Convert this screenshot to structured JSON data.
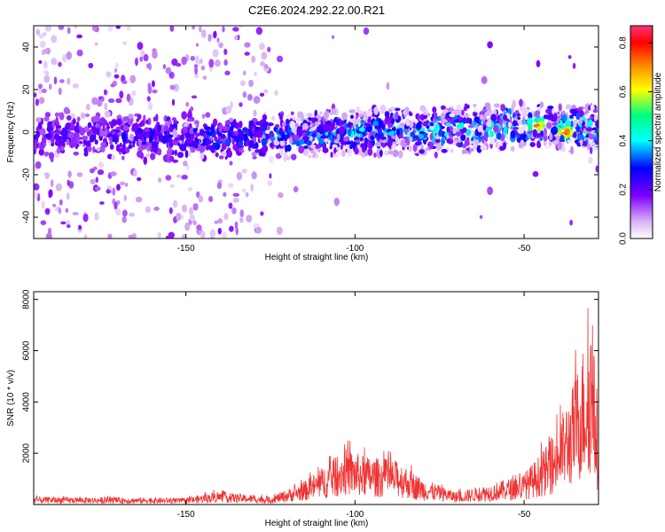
{
  "title": "C2E6.2024.292.22.00.R21",
  "chart_data": [
    {
      "type": "heatmap",
      "xlabel": "Height of straight line (km)",
      "ylabel": "Frequency (Hz)",
      "xlim": [
        -195,
        -28
      ],
      "ylim": [
        -50,
        50
      ],
      "xticks": [
        -150,
        -100,
        -50
      ],
      "yticks": [
        -40,
        -20,
        0,
        20,
        40
      ],
      "colorbar": {
        "label": "Normalized spectral amplitude",
        "range": [
          0,
          0.87
        ],
        "ticks": [
          0.0,
          0.2,
          0.4,
          0.6,
          0.8
        ],
        "colors": [
          "#ffffff",
          "#d8b4f2",
          "#8000ff",
          "#0000ff",
          "#00ffff",
          "#00ff80",
          "#ffff00",
          "#ff8000",
          "#ff0000",
          "#ff3377"
        ]
      },
      "band": {
        "center_hz": [
          {
            "x": -195,
            "y": -1
          },
          {
            "x": -150,
            "y": -3
          },
          {
            "x": -125,
            "y": -2
          },
          {
            "x": -100,
            "y": 0
          },
          {
            "x": -75,
            "y": 1
          },
          {
            "x": -50,
            "y": 3
          },
          {
            "x": -28,
            "y": 1
          }
        ],
        "peaks": [
          {
            "x": -46,
            "y": 3,
            "amp": 0.8
          },
          {
            "x": -38,
            "y": 0,
            "amp": 0.85
          }
        ],
        "noise_region_x": [
          -195,
          -125
        ]
      }
    },
    {
      "type": "line",
      "xlabel": "Height of straight line (km)",
      "ylabel": "SNR (10 * v/v)",
      "xlim": [
        -195,
        -28
      ],
      "ylim": [
        0,
        8300
      ],
      "xticks": [
        -150,
        -100,
        -50
      ],
      "yticks": [
        2000,
        4000,
        6000,
        8000
      ],
      "series": [
        {
          "color": "#ee3333",
          "envelope": [
            {
              "x": -195,
              "y": 300
            },
            {
              "x": -150,
              "y": 250
            },
            {
              "x": -141,
              "y": 500
            },
            {
              "x": -125,
              "y": 300
            },
            {
              "x": -115,
              "y": 900
            },
            {
              "x": -110,
              "y": 1400
            },
            {
              "x": -103,
              "y": 2200
            },
            {
              "x": -97,
              "y": 1900
            },
            {
              "x": -87,
              "y": 1700
            },
            {
              "x": -80,
              "y": 1000
            },
            {
              "x": -70,
              "y": 500
            },
            {
              "x": -60,
              "y": 800
            },
            {
              "x": -50,
              "y": 1200
            },
            {
              "x": -42,
              "y": 2500
            },
            {
              "x": -36,
              "y": 4500
            },
            {
              "x": -32,
              "y": 6500
            },
            {
              "x": -30,
              "y": 7500
            },
            {
              "x": -28,
              "y": 3000
            }
          ]
        }
      ]
    }
  ]
}
